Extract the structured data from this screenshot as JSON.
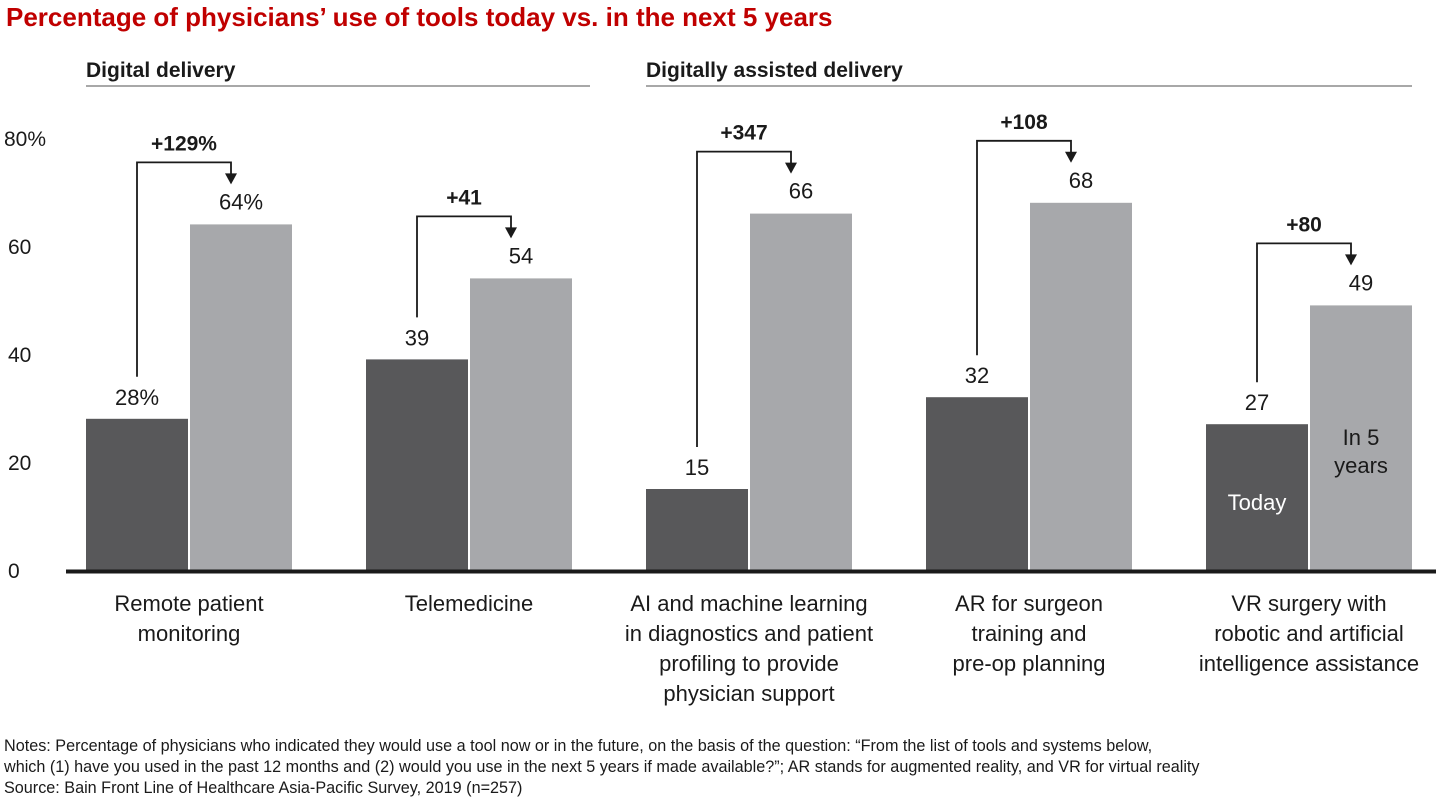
{
  "title": "Percentage of physicians’ use of tools today vs. in the next 5 years",
  "groups": [
    {
      "label": "Digital delivery",
      "categories": [
        0,
        1
      ]
    },
    {
      "label": "Digitally assisted delivery",
      "categories": [
        2,
        3,
        4
      ]
    }
  ],
  "legend": {
    "today": "Today",
    "future": "In 5 years"
  },
  "colors": {
    "today": "#58585a",
    "future": "#a7a8ab",
    "axis": "#1a1a1a"
  },
  "chart_data": {
    "type": "bar",
    "ylim": [
      0,
      80
    ],
    "yticks": [
      "0",
      "20",
      "40",
      "60",
      "80%"
    ],
    "categories": [
      [
        "Remote patient",
        "monitoring"
      ],
      [
        "Telemedicine"
      ],
      [
        "AI and machine learning",
        "in diagnostics and patient",
        "profiling to provide",
        "physician support"
      ],
      [
        "AR for surgeon",
        "training and",
        "pre-op planning"
      ],
      [
        "VR surgery with",
        "robotic and artificial",
        "intelligence assistance"
      ]
    ],
    "series": [
      {
        "name": "Today",
        "values": [
          28,
          39,
          15,
          32,
          27
        ],
        "labels": [
          "28%",
          "39",
          "15",
          "32",
          "27"
        ]
      },
      {
        "name": "In 5 years",
        "values": [
          64,
          54,
          66,
          68,
          49
        ],
        "labels": [
          "64%",
          "54",
          "66",
          "68",
          "49"
        ]
      }
    ],
    "growth_labels": [
      "+129%",
      "+41",
      "+347",
      "+108",
      "+80"
    ]
  },
  "notes": [
    "Notes: Percentage of physicians who indicated they would use a tool now or in the future, on the basis of the question: “From the list of tools and systems below,",
    "which (1) have you used in the past 12 months and (2) would you use in the next 5 years if made available?”; AR stands for augmented reality, and VR for virtual reality",
    "Source: Bain Front Line of Healthcare Asia-Pacific Survey, 2019 (n=257)"
  ]
}
